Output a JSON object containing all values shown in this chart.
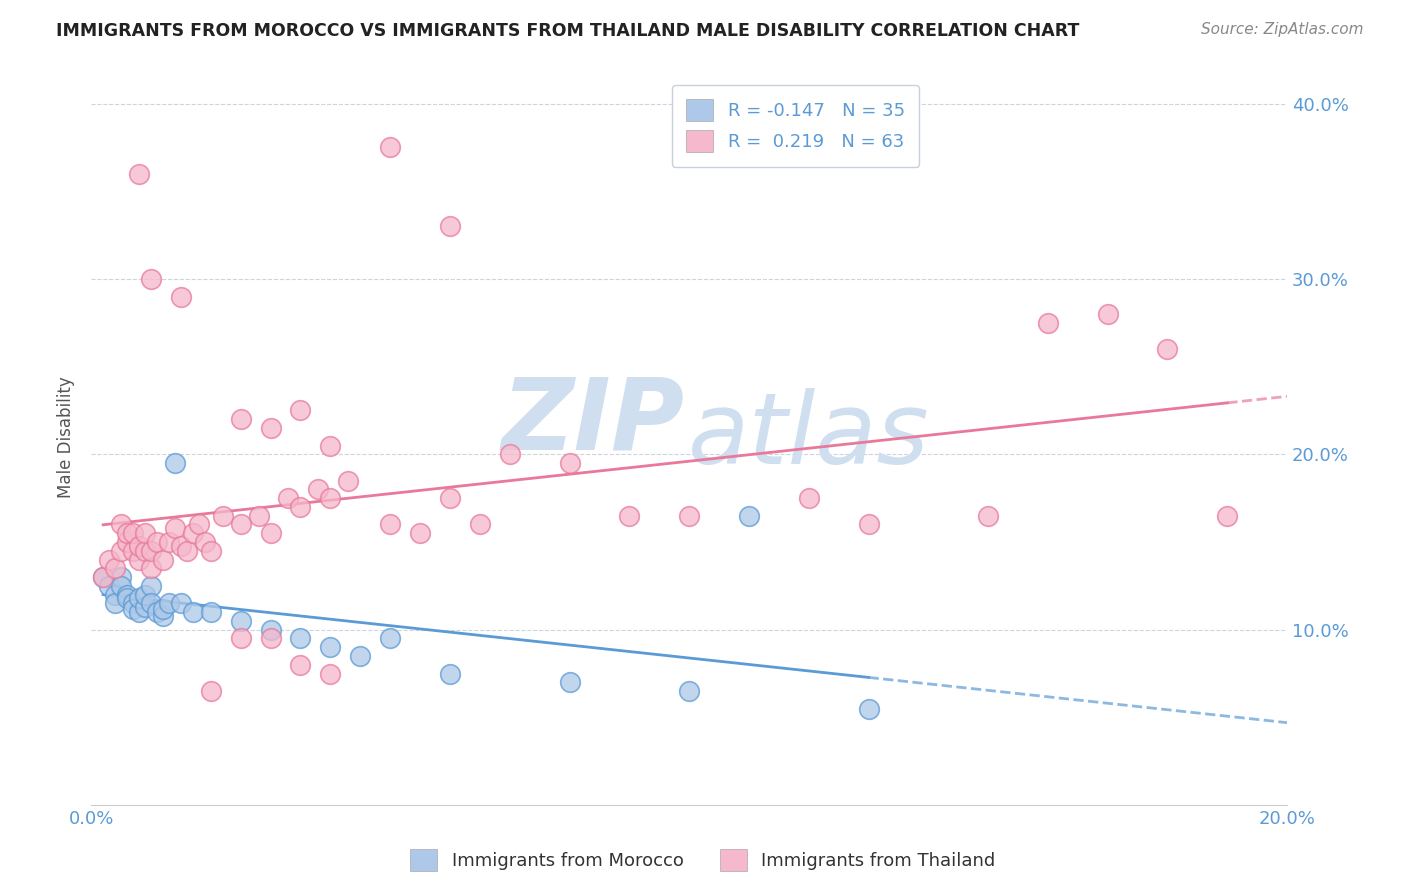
{
  "title": "IMMIGRANTS FROM MOROCCO VS IMMIGRANTS FROM THAILAND MALE DISABILITY CORRELATION CHART",
  "source": "Source: ZipAtlas.com",
  "ylabel": "Male Disability",
  "xlim": [
    0.0,
    0.2
  ],
  "ylim": [
    0.0,
    0.42
  ],
  "morocco_R": -0.147,
  "morocco_N": 35,
  "thailand_R": 0.219,
  "thailand_N": 63,
  "morocco_color": "#adc8e8",
  "thailand_color": "#f5b8cc",
  "morocco_line_color": "#5b9bd5",
  "thailand_line_color": "#e8799a",
  "watermark_zip": "ZIP",
  "watermark_atlas": "atlas",
  "watermark_color": "#d0dff0",
  "background_color": "#ffffff",
  "morocco_x": [
    0.002,
    0.003,
    0.004,
    0.004,
    0.005,
    0.005,
    0.006,
    0.006,
    0.007,
    0.007,
    0.008,
    0.008,
    0.009,
    0.009,
    0.01,
    0.01,
    0.011,
    0.012,
    0.012,
    0.013,
    0.014,
    0.015,
    0.017,
    0.02,
    0.025,
    0.03,
    0.035,
    0.04,
    0.045,
    0.05,
    0.06,
    0.08,
    0.1,
    0.11,
    0.13
  ],
  "morocco_y": [
    0.13,
    0.125,
    0.12,
    0.115,
    0.13,
    0.125,
    0.12,
    0.118,
    0.115,
    0.112,
    0.11,
    0.118,
    0.113,
    0.12,
    0.125,
    0.115,
    0.11,
    0.108,
    0.112,
    0.115,
    0.195,
    0.115,
    0.11,
    0.11,
    0.105,
    0.1,
    0.095,
    0.09,
    0.085,
    0.095,
    0.075,
    0.07,
    0.065,
    0.165,
    0.055
  ],
  "thailand_x": [
    0.002,
    0.003,
    0.004,
    0.005,
    0.005,
    0.006,
    0.006,
    0.007,
    0.007,
    0.008,
    0.008,
    0.009,
    0.009,
    0.01,
    0.01,
    0.011,
    0.012,
    0.013,
    0.014,
    0.015,
    0.016,
    0.017,
    0.018,
    0.019,
    0.02,
    0.022,
    0.025,
    0.028,
    0.03,
    0.033,
    0.035,
    0.038,
    0.04,
    0.043,
    0.05,
    0.055,
    0.06,
    0.065,
    0.07,
    0.08,
    0.09,
    0.1,
    0.12,
    0.13,
    0.15,
    0.16,
    0.17,
    0.18,
    0.19,
    0.035,
    0.04,
    0.025,
    0.03,
    0.015,
    0.01,
    0.008,
    0.05,
    0.06,
    0.02,
    0.025,
    0.03,
    0.035,
    0.04
  ],
  "thailand_y": [
    0.13,
    0.14,
    0.135,
    0.145,
    0.16,
    0.15,
    0.155,
    0.145,
    0.155,
    0.14,
    0.148,
    0.145,
    0.155,
    0.135,
    0.145,
    0.15,
    0.14,
    0.15,
    0.158,
    0.148,
    0.145,
    0.155,
    0.16,
    0.15,
    0.145,
    0.165,
    0.16,
    0.165,
    0.155,
    0.175,
    0.17,
    0.18,
    0.175,
    0.185,
    0.16,
    0.155,
    0.175,
    0.16,
    0.2,
    0.195,
    0.165,
    0.165,
    0.175,
    0.16,
    0.165,
    0.275,
    0.28,
    0.26,
    0.165,
    0.225,
    0.205,
    0.22,
    0.215,
    0.29,
    0.3,
    0.36,
    0.375,
    0.33,
    0.065,
    0.095,
    0.095,
    0.08,
    0.075
  ]
}
